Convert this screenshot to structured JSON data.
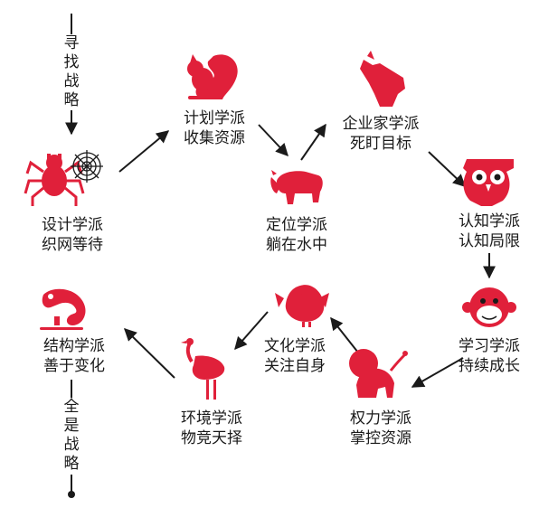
{
  "top_vertical_label": "寻找战略",
  "bottom_vertical_label": "全是战略",
  "schools": [
    {
      "line1": "计划学派",
      "line2": "收集资源",
      "animal_icon": "squirrel"
    },
    {
      "line1": "企业家学派",
      "line2": "死盯目标",
      "animal_icon": "wolf"
    },
    {
      "line1": "设计学派",
      "line2": "织网等待",
      "animal_icon": "spider"
    },
    {
      "line1": "定位学派",
      "line2": "躺在水中",
      "animal_icon": "bison"
    },
    {
      "line1": "认知学派",
      "line2": "认知局限",
      "animal_icon": "owl"
    },
    {
      "line1": "结构学派",
      "line2": "善于变化",
      "animal_icon": "chameleon"
    },
    {
      "line1": "文化学派",
      "line2": "关注自身",
      "animal_icon": "turkey"
    },
    {
      "line1": "学习学派",
      "line2": "持续成长",
      "animal_icon": "monkey"
    },
    {
      "line1": "环境学派",
      "line2": "物竞天择",
      "animal_icon": "ostrich"
    },
    {
      "line1": "权力学派",
      "line2": "掌控资源",
      "animal_icon": "lion"
    }
  ],
  "colors": {
    "icon": "#e0203a",
    "text": "#1a1a1a",
    "line": "#1a1a1a"
  }
}
